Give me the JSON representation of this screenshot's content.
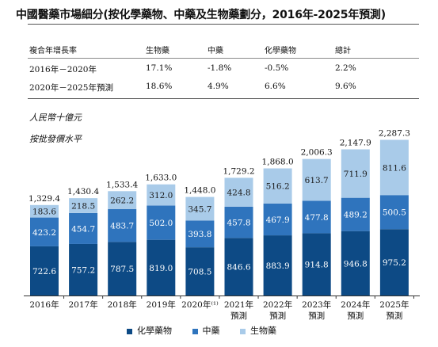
{
  "title": "中國醫藥市場細分(按化學藥物、中藥及生物藥劃分，2016年-2025年預測)",
  "table": {
    "header": [
      "複合年增長率",
      "生物藥",
      "中藥",
      "化學藥物",
      "總計"
    ],
    "rows": [
      [
        "2016年－2020年",
        "17.1%",
        "-1.8%",
        "-0.5%",
        "2.2%"
      ],
      [
        "2020年－2025年預測",
        "18.6%",
        "4.9%",
        "6.6%",
        "9.6%"
      ]
    ]
  },
  "unit_lines": [
    "人民幣十億元",
    "按批發價水平"
  ],
  "colors": {
    "chem": "#0d4a85",
    "tcm": "#2f74bd",
    "bio": "#a9cbe9"
  },
  "chart_data": {
    "type": "bar",
    "stacked": true,
    "categories": [
      [
        "2016年"
      ],
      [
        "2017年"
      ],
      [
        "2018年"
      ],
      [
        "2019年"
      ],
      [
        "2020年⁽¹⁾"
      ],
      [
        "2021年",
        "預測"
      ],
      [
        "2022年",
        "預測"
      ],
      [
        "2023年",
        "預測"
      ],
      [
        "2024年",
        "預測"
      ],
      [
        "2025年",
        "預測"
      ]
    ],
    "series": [
      {
        "name": "化學藥物",
        "values": [
          "722.6",
          "757.2",
          "787.5",
          "819.0",
          "708.5",
          "846.6",
          "883.9",
          "914.8",
          "946.8",
          "975.2"
        ]
      },
      {
        "name": "中藥",
        "values": [
          "423.2",
          "454.7",
          "483.7",
          "502.0",
          "393.8",
          "457.8",
          "467.9",
          "477.8",
          "489.2",
          "500.5"
        ]
      },
      {
        "name": "生物藥",
        "values": [
          "183.6",
          "218.5",
          "262.2",
          "312.0",
          "345.7",
          "424.8",
          "516.2",
          "613.7",
          "711.9",
          "811.6"
        ]
      }
    ],
    "totals": [
      "1,329.4",
      "1,430.4",
      "1,533.4",
      "1,633.0",
      "1,448.0",
      "1,729.2",
      "1,868.0",
      "2,006.3",
      "2,147.9",
      "2,287.3"
    ],
    "legend_position": "bottom"
  }
}
